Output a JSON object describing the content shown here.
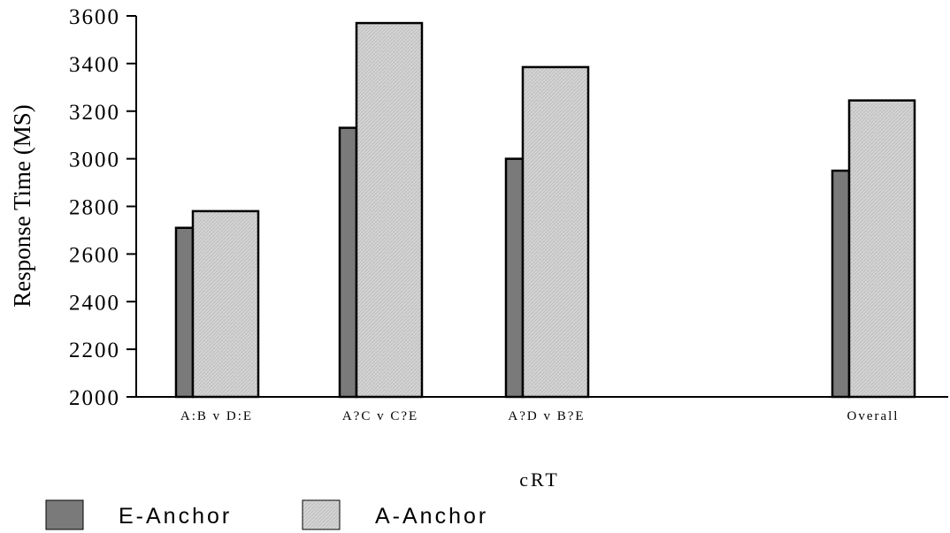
{
  "chart_data": {
    "type": "bar",
    "title": "",
    "xlabel": "cRT",
    "ylabel": "Response Time (MS)",
    "ylim": [
      2000,
      3600
    ],
    "yticks": [
      "2000",
      "2200",
      "2400",
      "2600",
      "2800",
      "3000",
      "3200",
      "3400",
      "3600"
    ],
    "categories": [
      "A:B v D:E",
      "A?C v C?E",
      "A?D v B?E",
      "Overall"
    ],
    "series": [
      {
        "name": "E-Anchor",
        "values": [
          2710,
          3130,
          3000,
          2950
        ],
        "color": "#7a7a7a"
      },
      {
        "name": "A-Anchor",
        "values": [
          2780,
          3570,
          3385,
          3245
        ],
        "color": "#d4d4d4"
      }
    ],
    "grid": false,
    "legend_position": "bottom-left"
  }
}
